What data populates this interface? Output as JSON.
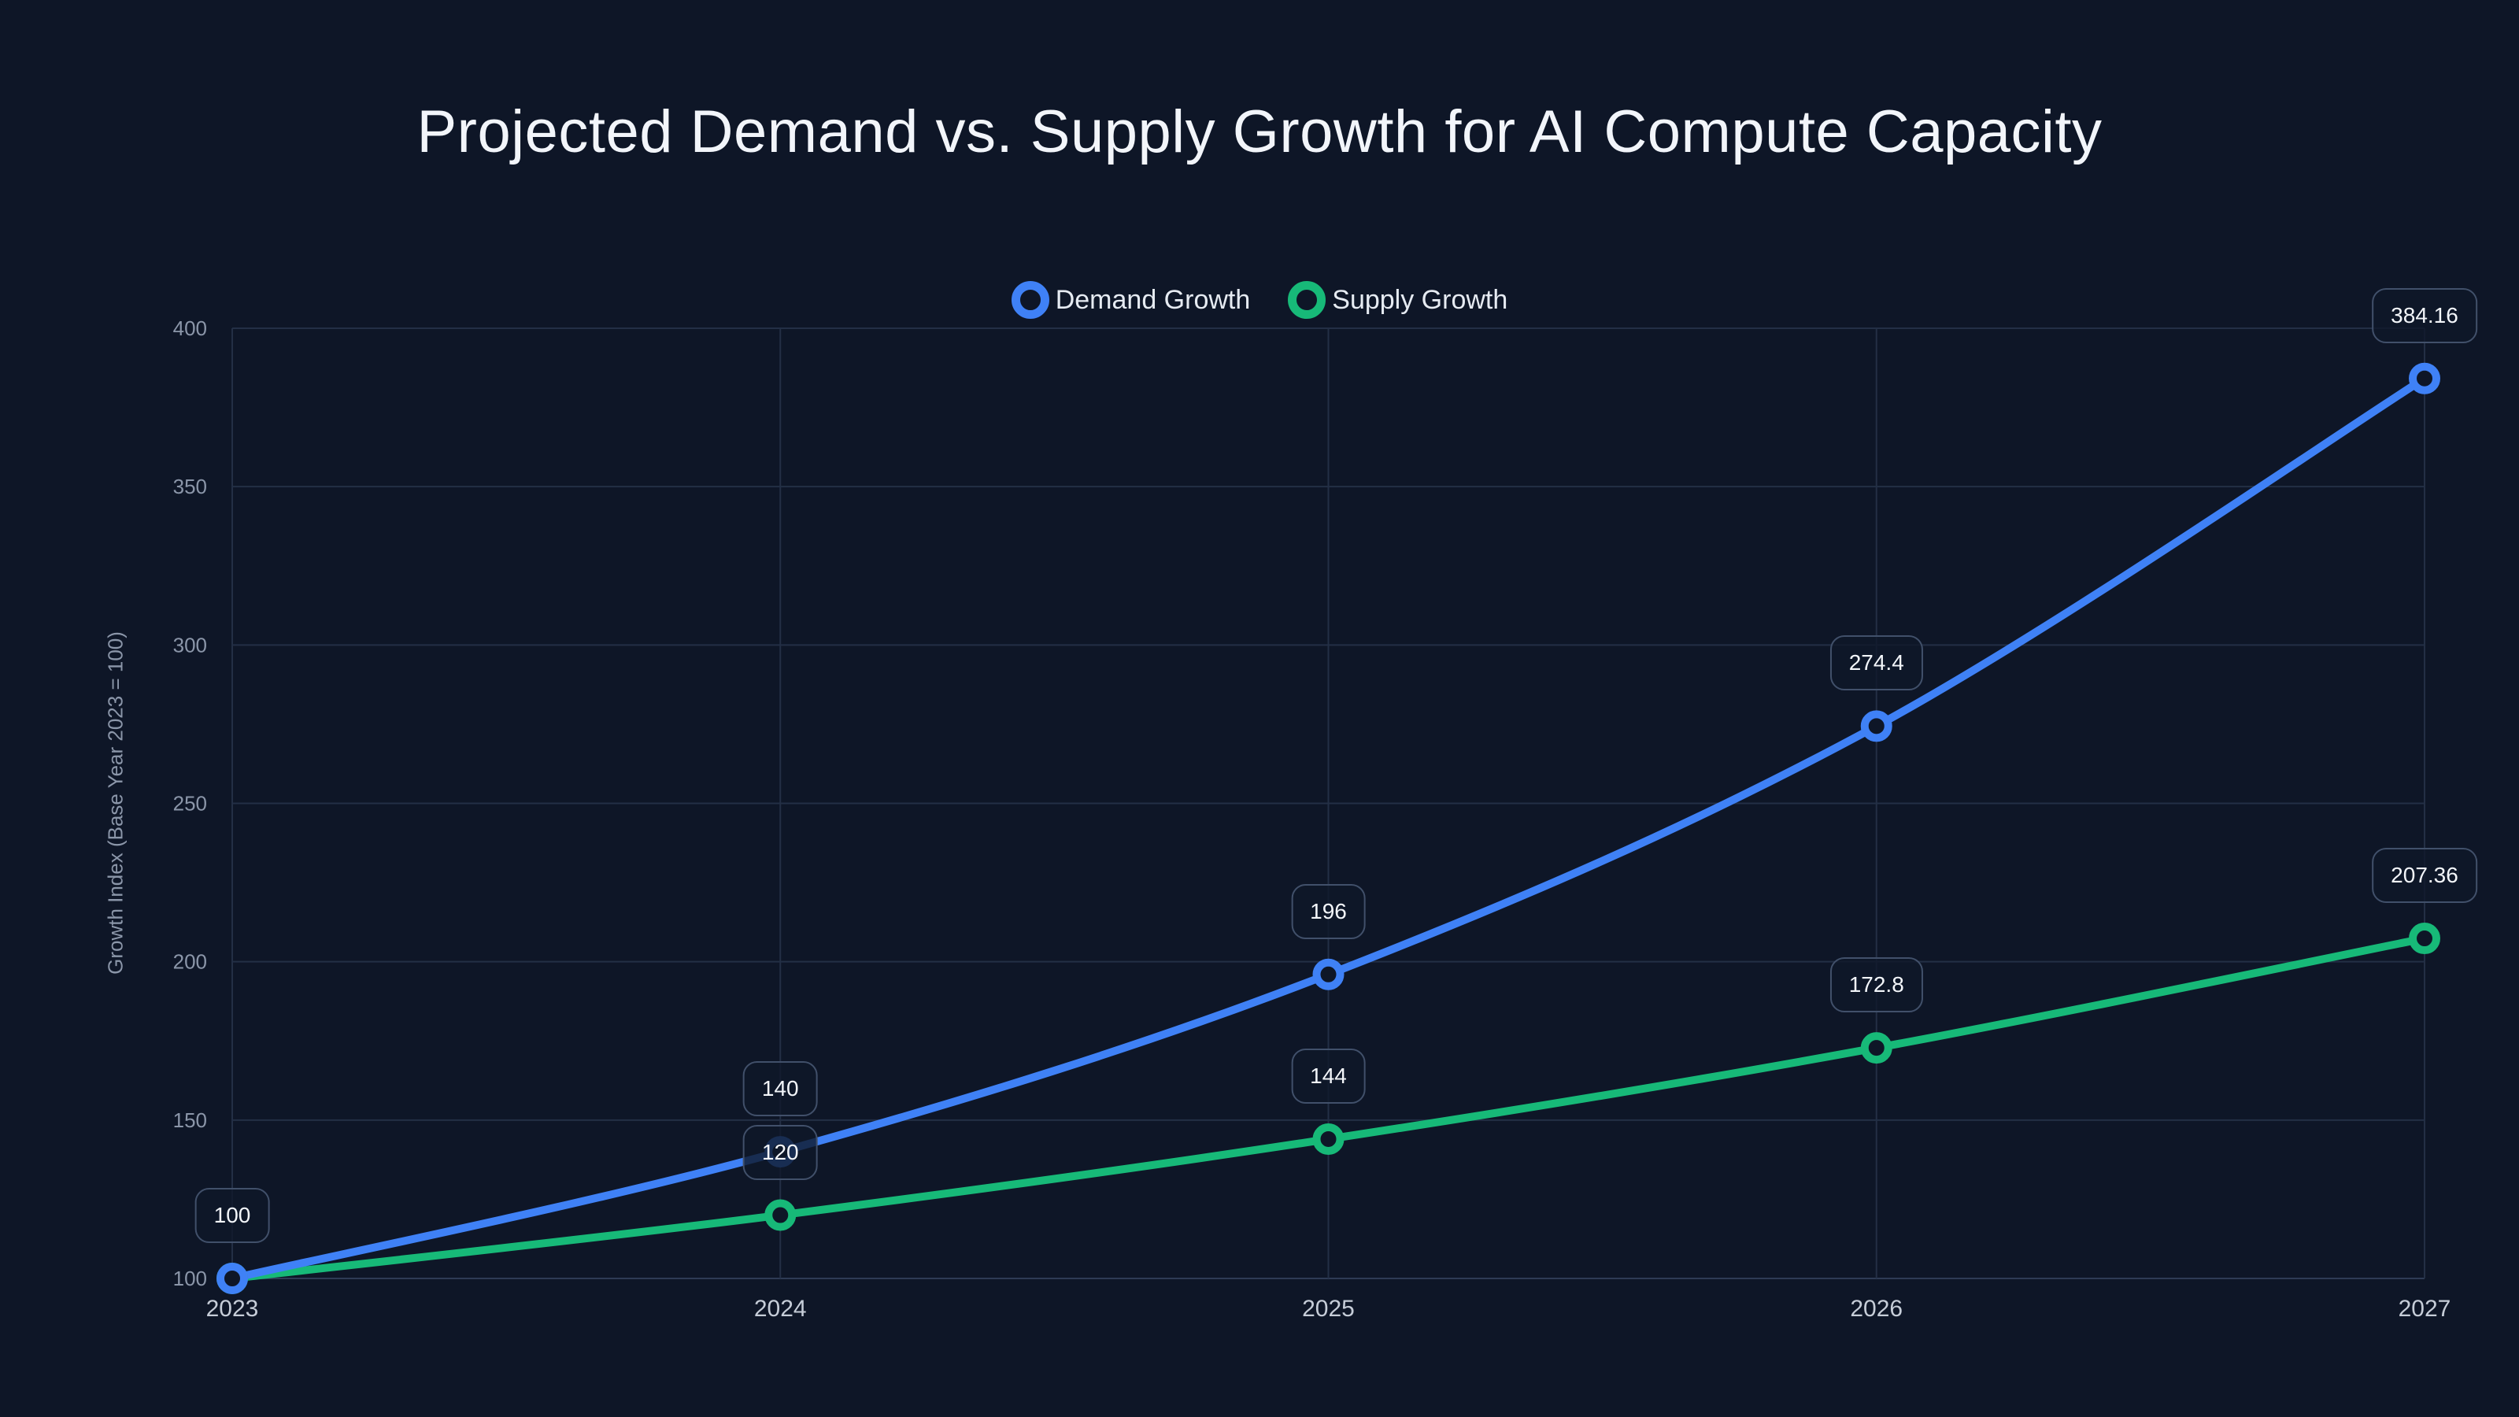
{
  "page": {
    "background": "#0e1627"
  },
  "chart_data": {
    "type": "line",
    "title": "Projected Demand vs. Supply Growth for AI Compute Capacity",
    "ylabel": "Growth Index (Base Year 2023 = 100)",
    "xlabel": "",
    "categories": [
      "2023",
      "2024",
      "2025",
      "2026",
      "2027"
    ],
    "ylim": [
      100,
      400
    ],
    "yticks": [
      100,
      150,
      200,
      250,
      300,
      350,
      400
    ],
    "grid": true,
    "legend_position": "top-center",
    "point_style": "open-circle",
    "series": [
      {
        "name": "Demand Growth",
        "color": "#3f81f6",
        "values": [
          100,
          140,
          196,
          274.4,
          384.16
        ],
        "point_labels": [
          "100",
          "140",
          "196",
          "274.4",
          "384.16"
        ]
      },
      {
        "name": "Supply Growth",
        "color": "#17b978",
        "values": [
          100,
          120,
          144,
          172.8,
          207.36
        ],
        "point_labels": [
          null,
          "120",
          "144",
          "172.8",
          "207.36"
        ]
      }
    ]
  },
  "colors": {
    "background": "#0e1627",
    "title_text": "#f2f5fa",
    "legend_text": "#e6ebf2",
    "grid_line": "#232f45",
    "axis_line": "#2e3b55",
    "y_tick_text": "#8b96a9",
    "x_tick_text": "#c6cdd8",
    "badge_border": "#41506a",
    "badge_background": "#0f1829",
    "badge_text": "#f3f6fa",
    "demand_blue": "#3f81f6",
    "supply_green": "#17b978"
  }
}
